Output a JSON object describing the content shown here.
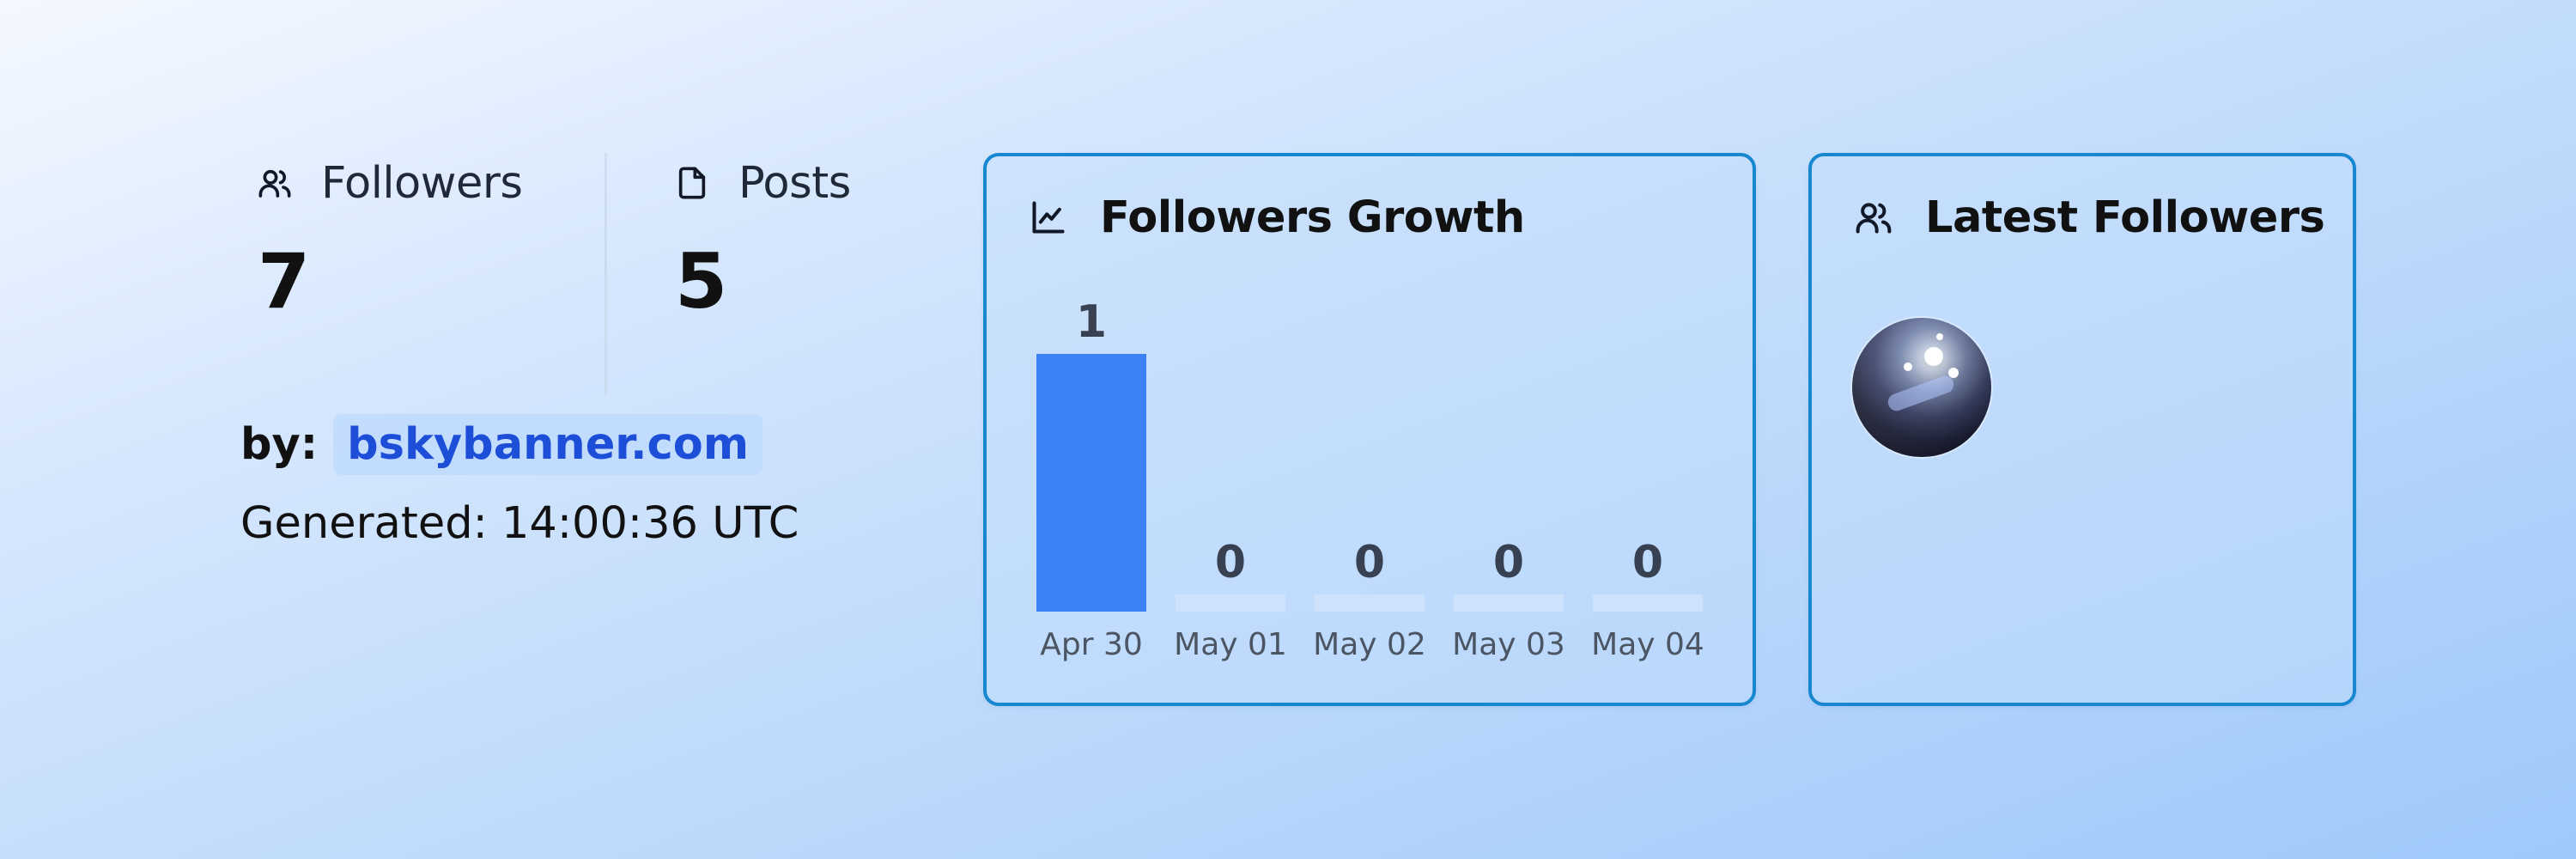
{
  "stats": {
    "followers": {
      "label": "Followers",
      "value": "7",
      "icon": "users-icon"
    },
    "posts": {
      "label": "Posts",
      "value": "5",
      "icon": "file-icon"
    }
  },
  "attribution": {
    "by_label": "by:",
    "link_text": "bskybanner.com"
  },
  "generated": "Generated: 14:00:36 UTC",
  "growth_card": {
    "title": "Followers Growth",
    "icon": "line-chart-icon"
  },
  "latest_card": {
    "title": "Latest Followers",
    "icon": "users-icon",
    "avatars": [
      {
        "description_icon": "avatar-icon"
      }
    ]
  },
  "colors": {
    "accent_bar": "#3b82f6",
    "empty_bar": "#cfe2fb",
    "card_border": "#1787d0",
    "link": "#1d4ed8"
  },
  "chart_data": {
    "type": "bar",
    "categories": [
      "Apr 30",
      "May 01",
      "May 02",
      "May 03",
      "May 04"
    ],
    "values": [
      1,
      0,
      0,
      0,
      0
    ],
    "title": "Followers Growth",
    "xlabel": "",
    "ylabel": "",
    "ylim": [
      0,
      1
    ],
    "grid": false
  }
}
